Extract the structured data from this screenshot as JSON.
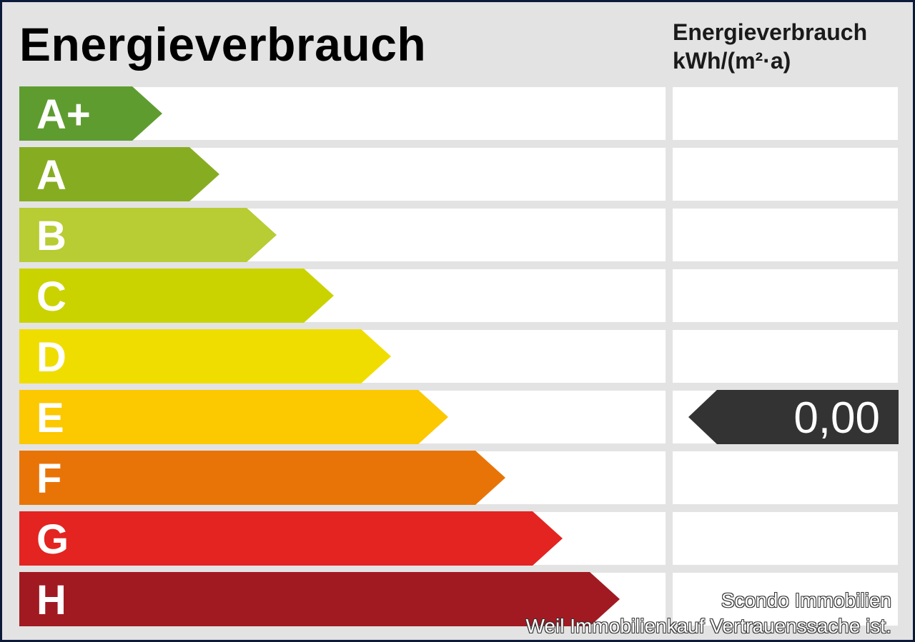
{
  "title": "Energieverbrauch",
  "value_column": {
    "line1": "Energieverbrauch",
    "line2": "kWh/(m²·a)"
  },
  "classes": [
    {
      "label": "A+",
      "color": "#5f9c30"
    },
    {
      "label": "A",
      "color": "#86ad21"
    },
    {
      "label": "B",
      "color": "#b8cc33"
    },
    {
      "label": "C",
      "color": "#cad300"
    },
    {
      "label": "D",
      "color": "#f0dd00"
    },
    {
      "label": "E",
      "color": "#fcc800"
    },
    {
      "label": "F",
      "color": "#e87408"
    },
    {
      "label": "G",
      "color": "#e32421"
    },
    {
      "label": "H",
      "color": "#a11a22"
    }
  ],
  "indicator": {
    "value": "0,00",
    "class": "E",
    "color": "#333333"
  },
  "watermark": {
    "line1": "Scondo Immobilien",
    "line2": "Weil Immobilienkauf Vertrauenssache ist."
  }
}
